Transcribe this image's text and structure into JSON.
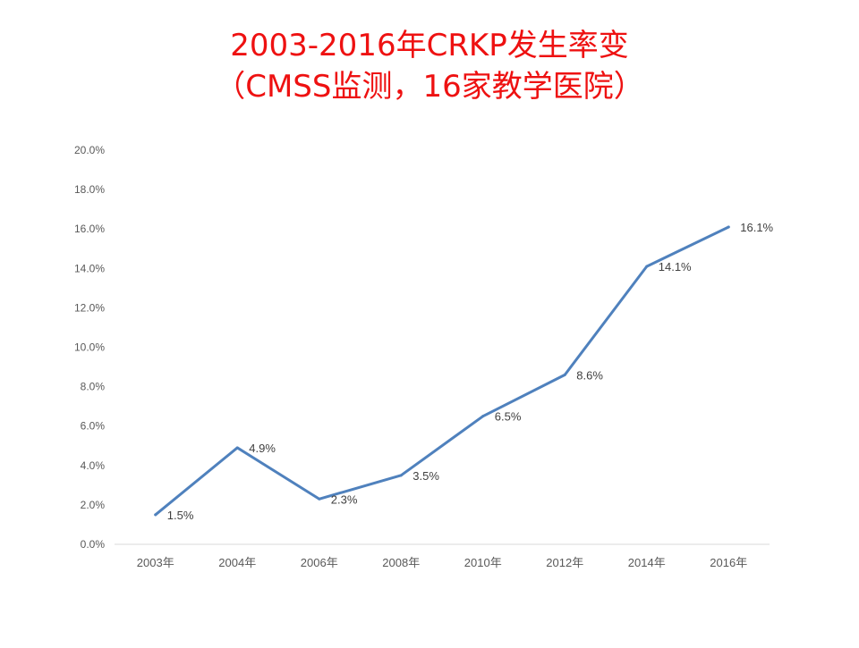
{
  "title": {
    "line1": "2003-2016年CRKP发生率变",
    "line2": "（CMSS监测，16家教学医院）"
  },
  "chart_data": {
    "type": "line",
    "categories": [
      "2003年",
      "2004年",
      "2006年",
      "2008年",
      "2010年",
      "2012年",
      "2014年",
      "2016年"
    ],
    "series": [
      {
        "values": [
          1.5,
          4.9,
          2.3,
          3.5,
          6.5,
          8.6,
          14.1,
          16.1
        ],
        "data_labels": [
          "1.5%",
          "4.9%",
          "2.3%",
          "3.5%",
          "6.5%",
          "8.6%",
          "14.1%",
          "16.1%"
        ],
        "color": "#4f81bd"
      }
    ],
    "y_ticks": [
      "0.0%",
      "2.0%",
      "4.0%",
      "6.0%",
      "8.0%",
      "10.0%",
      "12.0%",
      "14.0%",
      "16.0%",
      "18.0%",
      "20.0%"
    ],
    "ylim": [
      0,
      20
    ],
    "y_unit": "%",
    "grid": false,
    "legend": "none",
    "axis_color": "#d9d9d9",
    "tick_label_color": "#595959"
  }
}
